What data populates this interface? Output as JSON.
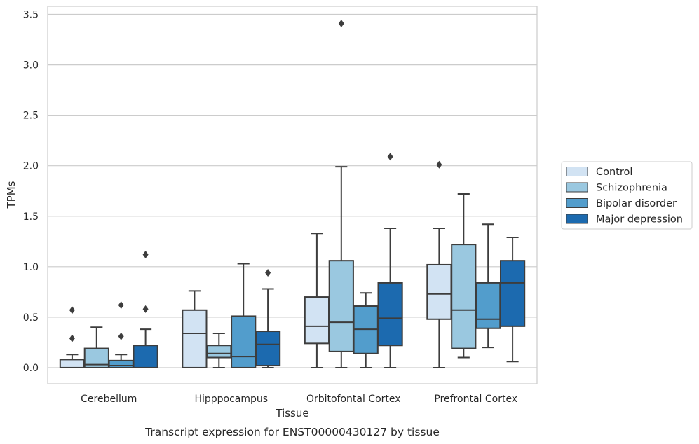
{
  "caption": "Transcript expression for ENST00000430127 by tissue",
  "chart_data": {
    "type": "boxplot",
    "xlabel": "Tissue",
    "ylabel": "TPMs",
    "ylim": [
      -0.16,
      3.58
    ],
    "yticks": [
      0.0,
      0.5,
      1.0,
      1.5,
      2.0,
      2.5,
      3.0,
      3.5
    ],
    "ytick_labels": [
      "0.0",
      "0.5",
      "1.0",
      "1.5",
      "2.0",
      "2.5",
      "3.0",
      "3.5"
    ],
    "grid": "horizontal",
    "legend_position": "outside-right",
    "categories": [
      "Cerebellum",
      "Hipppocampus",
      "Orbitofontal Cortex",
      "Prefrontal Cortex"
    ],
    "series": [
      {
        "name": "Control",
        "color": "#d2e3f3",
        "boxes": [
          {
            "whislo": 0.0,
            "q1": 0.0,
            "med": 0.0,
            "q3": 0.08,
            "whishi": 0.13,
            "fliers": [
              0.29,
              0.57
            ]
          },
          {
            "whislo": 0.0,
            "q1": 0.0,
            "med": 0.34,
            "q3": 0.57,
            "whishi": 0.76,
            "fliers": []
          },
          {
            "whislo": 0.0,
            "q1": 0.24,
            "med": 0.41,
            "q3": 0.7,
            "whishi": 1.33,
            "fliers": []
          },
          {
            "whislo": 0.0,
            "q1": 0.48,
            "med": 0.73,
            "q3": 1.02,
            "whishi": 1.38,
            "fliers": [
              2.01
            ]
          }
        ]
      },
      {
        "name": "Schizophrenia",
        "color": "#9ac8e0",
        "boxes": [
          {
            "whislo": 0.0,
            "q1": 0.0,
            "med": 0.03,
            "q3": 0.19,
            "whishi": 0.4,
            "fliers": []
          },
          {
            "whislo": 0.0,
            "q1": 0.1,
            "med": 0.14,
            "q3": 0.22,
            "whishi": 0.34,
            "fliers": []
          },
          {
            "whislo": 0.0,
            "q1": 0.16,
            "med": 0.45,
            "q3": 1.06,
            "whishi": 1.99,
            "fliers": [
              3.41
            ]
          },
          {
            "whislo": 0.1,
            "q1": 0.19,
            "med": 0.57,
            "q3": 1.22,
            "whishi": 1.72,
            "fliers": []
          }
        ]
      },
      {
        "name": "Bipolar disorder",
        "color": "#529dcc",
        "boxes": [
          {
            "whislo": 0.0,
            "q1": 0.0,
            "med": 0.02,
            "q3": 0.07,
            "whishi": 0.13,
            "fliers": [
              0.31,
              0.62
            ]
          },
          {
            "whislo": 0.0,
            "q1": 0.0,
            "med": 0.11,
            "q3": 0.51,
            "whishi": 1.03,
            "fliers": []
          },
          {
            "whislo": 0.0,
            "q1": 0.14,
            "med": 0.38,
            "q3": 0.61,
            "whishi": 0.74,
            "fliers": []
          },
          {
            "whislo": 0.2,
            "q1": 0.39,
            "med": 0.48,
            "q3": 0.84,
            "whishi": 1.42,
            "fliers": []
          }
        ]
      },
      {
        "name": "Major depression",
        "color": "#1c6aaf",
        "boxes": [
          {
            "whislo": 0.0,
            "q1": 0.0,
            "med": 0.0,
            "q3": 0.22,
            "whishi": 0.38,
            "fliers": [
              0.58,
              1.12
            ]
          },
          {
            "whislo": 0.0,
            "q1": 0.02,
            "med": 0.23,
            "q3": 0.36,
            "whishi": 0.78,
            "fliers": [
              0.94
            ]
          },
          {
            "whislo": 0.0,
            "q1": 0.22,
            "med": 0.49,
            "q3": 0.84,
            "whishi": 1.38,
            "fliers": [
              2.09
            ]
          },
          {
            "whislo": 0.06,
            "q1": 0.41,
            "med": 0.84,
            "q3": 1.06,
            "whishi": 1.29,
            "fliers": []
          }
        ]
      }
    ]
  }
}
